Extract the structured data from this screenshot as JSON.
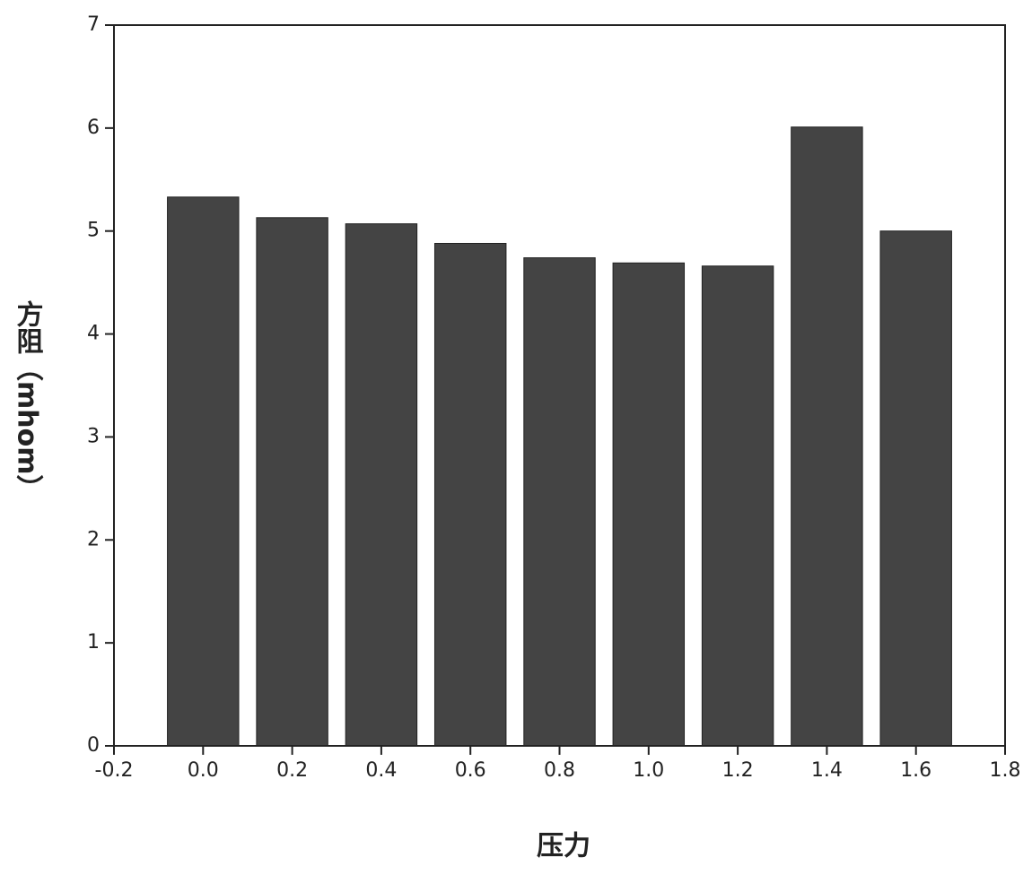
{
  "chart_data": {
    "type": "bar",
    "x_label": "压力",
    "y_label": "方阻（mhom）",
    "x": [
      0,
      0.2,
      0.4,
      0.6,
      0.8,
      1,
      1.2,
      1.4,
      1.6
    ],
    "values": [
      5.33,
      5.13,
      5.07,
      4.88,
      4.74,
      4.69,
      4.66,
      6.01,
      5.0
    ],
    "color": "#444444",
    "xlim": [
      -0.2,
      1.8
    ],
    "xticks": [
      -0.2,
      {
        "value": 0,
        "label": "0.0"
      },
      0.2,
      0.4,
      0.6,
      0.8,
      {
        "value": 1,
        "label": "1.0"
      },
      1.2,
      1.4,
      1.6,
      1.8
    ],
    "ylim": [
      0,
      7
    ],
    "yticks": [
      0,
      1,
      2,
      3,
      4,
      5,
      6,
      7
    ]
  }
}
